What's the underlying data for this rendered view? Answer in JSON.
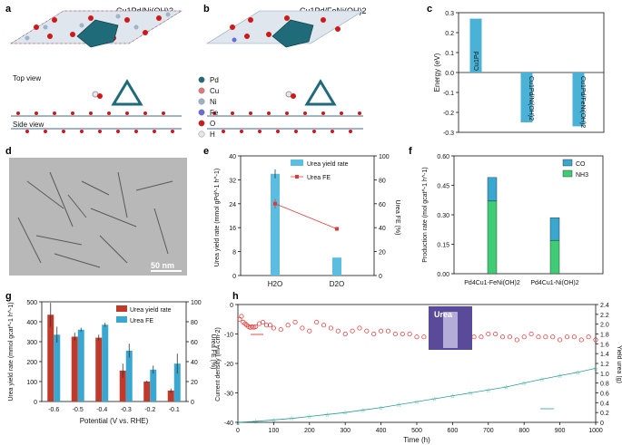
{
  "panels": {
    "a": {
      "label": "a",
      "title": "Cu1Pd/Ni(OH)2",
      "top_view": "Top view",
      "side_view": "Side view"
    },
    "b": {
      "label": "b",
      "title": "Cu1Pd/FeNi(OH)2",
      "legend": [
        {
          "name": "Pd",
          "color": "#1f6b7a"
        },
        {
          "name": "Cu",
          "color": "#e07a7a"
        },
        {
          "name": "Ni",
          "color": "#9fb4c8"
        },
        {
          "name": "Fe",
          "color": "#6b6bd6"
        },
        {
          "name": "O",
          "color": "#d01818"
        },
        {
          "name": "H",
          "color": "#e8e8e8"
        }
      ]
    },
    "d": {
      "label": "d",
      "scalebar": "50 nm"
    },
    "h_inset": {
      "caption": "Urea"
    }
  },
  "chart_data": [
    {
      "panel": "c",
      "type": "bar",
      "categories": [
        "Cu1Pd",
        "Cu1Pd/Ni(OH)2",
        "Cu1Pd/FeNi(OH)2"
      ],
      "values": [
        0.27,
        -0.25,
        -0.27
      ],
      "ylabel": "Energy (eV)",
      "ylim": [
        -0.3,
        0.3
      ],
      "yticks": [
        "0.3",
        "0.2",
        "0.1",
        "0.0",
        "-0.1",
        "-0.2",
        "-0.3"
      ],
      "color": "#49b2d6"
    },
    {
      "panel": "e",
      "type": "bar+line",
      "categories": [
        "H2O",
        "D2O"
      ],
      "series": [
        {
          "name": "Urea yield rate",
          "values": [
            34,
            6
          ],
          "errors": [
            1.5,
            0
          ]
        },
        {
          "name": "Urea FE",
          "values": [
            60,
            39
          ],
          "errors": [
            4,
            0
          ]
        }
      ],
      "ylabel": "Urea yield rate (mmol gPd^-1 h^-1)",
      "ylabel_main": "Urea yield rate (mmol g",
      "ylabel_sub": "Pd",
      "ylabel_tail": "-1 h-1)",
      "ylim": [
        0,
        40
      ],
      "yticks": [
        "0",
        "8",
        "16",
        "24",
        "32",
        "40"
      ],
      "y2label": "Urea FE (%)",
      "y2lim": [
        0,
        100
      ],
      "y2ticks": [
        "0",
        "20",
        "40",
        "60",
        "80",
        "100"
      ],
      "xtick_labels": [
        "H2O",
        "D2O"
      ]
    },
    {
      "panel": "f",
      "type": "stacked-bar",
      "categories": [
        "Pd4Cu1-FeNi(OH)2",
        "Pd4Cu1-Ni(OH)2"
      ],
      "series": [
        {
          "name": "NH3",
          "values": [
            0.37,
            0.17
          ],
          "color": "#3fcc74"
        },
        {
          "name": "CO",
          "values": [
            0.12,
            0.115
          ],
          "color": "#3aa7d0"
        }
      ],
      "ylabel": "Production rate (mol gcat^-1 h^-1)",
      "ylim": [
        0,
        0.6
      ],
      "yticks": [
        "0.00",
        "0.15",
        "0.30",
        "0.45",
        "0.60"
      ],
      "legend": [
        "CO",
        "NH3"
      ]
    },
    {
      "panel": "g",
      "type": "grouped-bar",
      "categories": [
        "-0.6",
        "-0.5",
        "-0.4",
        "-0.3",
        "-0.2",
        "-0.1"
      ],
      "series": [
        {
          "name": "Urea yield rate",
          "values": [
            435,
            325,
            320,
            155,
            100,
            55
          ],
          "errors": [
            60,
            20,
            15,
            35,
            5,
            10
          ],
          "color": "#c0392b"
        },
        {
          "name": "Urea FE",
          "values": [
            67,
            72,
            77,
            51,
            32,
            38
          ],
          "errors": [
            8,
            2,
            2,
            7,
            4,
            10
          ],
          "color": "#3aa7d0"
        }
      ],
      "xlabel": "Potential (V vs. RHE)",
      "ylabel": "Urea yield rate (mmol gcat^-1 h^-1)",
      "ylim": [
        0,
        500
      ],
      "yticks": [
        "0",
        "100",
        "200",
        "300",
        "400",
        "500"
      ],
      "y2label": "Urea FE (%)",
      "y2lim": [
        0,
        100
      ],
      "y2ticks": [
        "0",
        "20",
        "40",
        "60",
        "80",
        "100"
      ]
    },
    {
      "panel": "h",
      "type": "scatter+line",
      "xlabel": "Time (h)",
      "xlim": [
        0,
        1000
      ],
      "xticks": [
        "0",
        "100",
        "200",
        "300",
        "400",
        "500",
        "600",
        "700",
        "800",
        "900",
        "1000"
      ],
      "ylabel": "Current density (mA cm-2)",
      "ylim": [
        -40,
        0
      ],
      "yticks": [
        "0",
        "-10",
        "-20",
        "-30",
        "-40"
      ],
      "y2label": "Yield urea (g)",
      "y2lim": [
        0,
        2.4
      ],
      "y2ticks": [
        "0",
        "0.2",
        "0.4",
        "0.6",
        "0.8",
        "1.0",
        "1.2",
        "1.4",
        "1.6",
        "1.8",
        "2.0",
        "2.2",
        "2.4"
      ],
      "series": [
        {
          "name": "Current density",
          "x": [
            5,
            10,
            15,
            20,
            25,
            30,
            35,
            40,
            45,
            50,
            60,
            70,
            80,
            90,
            100,
            120,
            140,
            160,
            180,
            200,
            220,
            240,
            260,
            280,
            300,
            320,
            340,
            360,
            380,
            400,
            420,
            440,
            460,
            480,
            500,
            520,
            540,
            560,
            580,
            600,
            620,
            640,
            660,
            680,
            700,
            720,
            740,
            760,
            780,
            800,
            820,
            840,
            860,
            880,
            900,
            920,
            940,
            960,
            980,
            1000
          ],
          "y": [
            -5,
            -4,
            -6,
            -6.5,
            -7,
            -7.5,
            -7.8,
            -7.6,
            -7.7,
            -7.5,
            -6.5,
            -6,
            -7,
            -7,
            -8,
            -8.5,
            -7,
            -6,
            -8,
            -9,
            -6,
            -7,
            -8,
            -9,
            -10,
            -9,
            -8,
            -9,
            -10,
            -9,
            -9,
            -10,
            -10,
            -10,
            -11,
            -11,
            -10,
            -11,
            -11,
            -11,
            -10,
            -11,
            -11,
            -11,
            -10,
            -10,
            -11,
            -11,
            -12,
            -11,
            -10,
            -11,
            -11,
            -11,
            -12,
            -11,
            -11,
            -12,
            -11,
            -12
          ]
        },
        {
          "name": "Yield urea",
          "x": [
            0,
            50,
            100,
            150,
            200,
            250,
            300,
            350,
            400,
            450,
            500,
            550,
            600,
            650,
            700,
            750,
            800,
            850,
            900,
            950,
            1000
          ],
          "y": [
            0,
            0.02,
            0.05,
            0.08,
            0.12,
            0.16,
            0.2,
            0.25,
            0.3,
            0.36,
            0.42,
            0.48,
            0.54,
            0.6,
            0.66,
            0.72,
            0.8,
            0.88,
            0.95,
            1.02,
            1.1
          ]
        }
      ]
    }
  ]
}
